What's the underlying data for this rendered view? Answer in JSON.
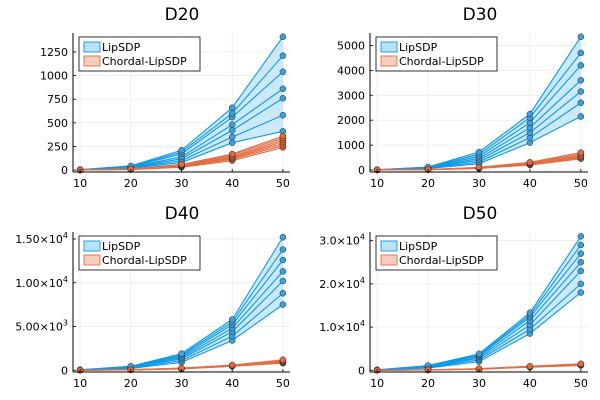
{
  "chart_data": [
    {
      "type": "line",
      "title": "D20",
      "x": [
        10,
        20,
        30,
        40,
        50
      ],
      "xticks": [
        "10",
        "20",
        "30",
        "40",
        "50"
      ],
      "ylim": [
        -20,
        1450
      ],
      "yticks": [
        {
          "v": 0,
          "label": "0"
        },
        {
          "v": 250,
          "label": "250"
        },
        {
          "v": 500,
          "label": "500"
        },
        {
          "v": 750,
          "label": "750"
        },
        {
          "v": 1000,
          "label": "1000"
        },
        {
          "v": 1250,
          "label": "1250"
        }
      ],
      "legend": [
        "LipSDP",
        "Chordal-LipSDP"
      ],
      "legend_position": "top-left",
      "series": [
        {
          "name": "LipSDP",
          "runs": [
            [
              2,
              20,
              80,
              290,
              410
            ],
            [
              3,
              25,
              100,
              350,
              580
            ],
            [
              3,
              28,
              120,
              420,
              760
            ],
            [
              4,
              32,
              140,
              480,
              860
            ],
            [
              4,
              36,
              170,
              560,
              1040
            ],
            [
              5,
              40,
              190,
              600,
              1210
            ],
            [
              5,
              45,
              210,
              660,
              1410
            ]
          ]
        },
        {
          "name": "Chordal-LipSDP",
          "runs": [
            [
              1,
              6,
              30,
              100,
              240
            ],
            [
              1,
              7,
              35,
              115,
              260
            ],
            [
              1,
              8,
              40,
              125,
              280
            ],
            [
              1,
              9,
              45,
              135,
              300
            ],
            [
              2,
              10,
              50,
              145,
              320
            ],
            [
              2,
              11,
              55,
              160,
              340
            ],
            [
              2,
              12,
              60,
              170,
              360
            ]
          ]
        }
      ]
    },
    {
      "type": "line",
      "title": "D30",
      "x": [
        10,
        20,
        30,
        40,
        50
      ],
      "xticks": [
        "10",
        "20",
        "30",
        "40",
        "50"
      ],
      "ylim": [
        -80,
        5500
      ],
      "yticks": [
        {
          "v": 0,
          "label": "0"
        },
        {
          "v": 1000,
          "label": "1000"
        },
        {
          "v": 2000,
          "label": "2000"
        },
        {
          "v": 3000,
          "label": "3000"
        },
        {
          "v": 4000,
          "label": "4000"
        },
        {
          "v": 5000,
          "label": "5000"
        }
      ],
      "legend": [
        "LipSDP",
        "Chordal-LipSDP"
      ],
      "legend_position": "top-left",
      "series": [
        {
          "name": "LipSDP",
          "runs": [
            [
              5,
              60,
              250,
              1100,
              2150
            ],
            [
              6,
              70,
              320,
              1300,
              2700
            ],
            [
              7,
              80,
              400,
              1500,
              3150
            ],
            [
              8,
              90,
              470,
              1700,
              3600
            ],
            [
              9,
              100,
              550,
              1900,
              4200
            ],
            [
              10,
              110,
              630,
              2100,
              4700
            ],
            [
              11,
              120,
              720,
              2250,
              5350
            ]
          ]
        },
        {
          "name": "Chordal-LipSDP",
          "runs": [
            [
              2,
              10,
              60,
              200,
              450
            ],
            [
              2,
              12,
              70,
              220,
              500
            ],
            [
              3,
              14,
              80,
              240,
              540
            ],
            [
              3,
              16,
              90,
              260,
              580
            ],
            [
              4,
              18,
              100,
              290,
              640
            ],
            [
              4,
              20,
              110,
              310,
              700
            ]
          ]
        }
      ]
    },
    {
      "type": "line",
      "title": "D40",
      "x": [
        10,
        20,
        30,
        40,
        50
      ],
      "xticks": [
        "10",
        "20",
        "30",
        "40",
        "50"
      ],
      "ylim": [
        -200,
        15800
      ],
      "yticks": [
        {
          "v": 0,
          "label": "0",
          "m": "",
          "e": ""
        },
        {
          "v": 5000,
          "label": "5.00×10",
          "m": "5.00×10",
          "e": "3"
        },
        {
          "v": 10000,
          "label": "1.00×10",
          "m": "1.00×10",
          "e": "4"
        },
        {
          "v": 15000,
          "label": "1.50×10",
          "m": "1.50×10",
          "e": "4"
        }
      ],
      "legend": [
        "LipSDP",
        "Chordal-LipSDP"
      ],
      "legend_position": "top-left",
      "series": [
        {
          "name": "LipSDP",
          "runs": [
            [
              20,
              200,
              900,
              3400,
              7500
            ],
            [
              25,
              250,
              1100,
              3900,
              8800
            ],
            [
              30,
              300,
              1300,
              4400,
              10200
            ],
            [
              35,
              350,
              1450,
              4800,
              11300
            ],
            [
              40,
              380,
              1600,
              5200,
              12600
            ],
            [
              45,
              420,
              1750,
              5500,
              13800
            ],
            [
              50,
              460,
              1900,
              5800,
              15200
            ]
          ]
        },
        {
          "name": "Chordal-LipSDP",
          "runs": [
            [
              5,
              40,
              150,
              450,
              800
            ],
            [
              6,
              45,
              170,
              480,
              880
            ],
            [
              7,
              50,
              190,
              510,
              950
            ],
            [
              8,
              55,
              210,
              540,
              1020
            ],
            [
              9,
              60,
              230,
              570,
              1100
            ],
            [
              10,
              65,
              250,
              600,
              1200
            ]
          ]
        }
      ]
    },
    {
      "type": "line",
      "title": "D50",
      "x": [
        10,
        20,
        30,
        40,
        50
      ],
      "xticks": [
        "10",
        "20",
        "30",
        "40",
        "50"
      ],
      "ylim": [
        -400,
        32000
      ],
      "yticks": [
        {
          "v": 0,
          "label": "0",
          "m": "",
          "e": ""
        },
        {
          "v": 10000,
          "label": "1.0×10",
          "m": "1.0×10",
          "e": "4"
        },
        {
          "v": 20000,
          "label": "2.0×10",
          "m": "2.0×10",
          "e": "4"
        },
        {
          "v": 30000,
          "label": "3.0×10",
          "m": "3.0×10",
          "e": "4"
        }
      ],
      "legend": [
        "LipSDP",
        "Chordal-LipSDP"
      ],
      "legend_position": "top-left",
      "series": [
        {
          "name": "LipSDP",
          "runs": [
            [
              40,
              500,
              2000,
              8500,
              18000
            ],
            [
              50,
              600,
              2400,
              9500,
              20000
            ],
            [
              60,
              700,
              2800,
              10500,
              23000
            ],
            [
              70,
              800,
              3100,
              11500,
              25000
            ],
            [
              80,
              900,
              3400,
              12300,
              27000
            ],
            [
              90,
              1000,
              3600,
              12800,
              29000
            ],
            [
              100,
              1100,
              3800,
              13300,
              31000
            ]
          ]
        },
        {
          "name": "Chordal-LipSDP",
          "runs": [
            [
              8,
              60,
              250,
              700,
              1100
            ],
            [
              9,
              70,
              280,
              760,
              1200
            ],
            [
              10,
              80,
              310,
              820,
              1300
            ],
            [
              11,
              90,
              340,
              880,
              1400
            ],
            [
              12,
              100,
              370,
              940,
              1500
            ]
          ]
        }
      ]
    }
  ],
  "colors": {
    "lipsdp_line": "#0f9ae6",
    "lipsdp_fill": "#b9e2f6",
    "lipsdp_marker": "#3c9fdc",
    "chordal_line": "#e26f46",
    "chordal_fill": "#f5cdbd",
    "chordal_marker": "#e06a3d",
    "axis": "#000000",
    "grid": "#e8e8e8"
  }
}
